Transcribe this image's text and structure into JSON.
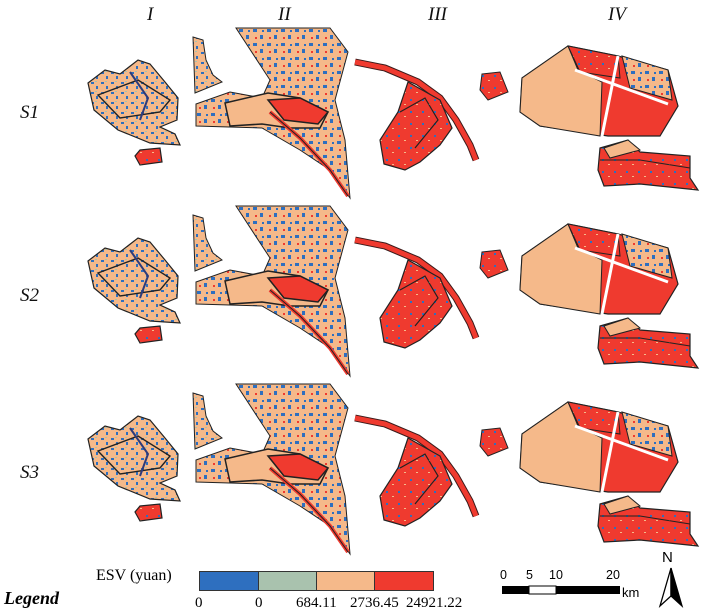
{
  "columns": [
    "I",
    "II",
    "III",
    "IV"
  ],
  "rows": [
    "S1",
    "S2",
    "S3"
  ],
  "legend": {
    "title": "Legend",
    "unit_label": "ESV (yuan)",
    "classes": [
      {
        "color": "#2e6fbf"
      },
      {
        "color": "#a9c2ae"
      },
      {
        "color": "#f5b98a"
      },
      {
        "color": "#ef3a2f"
      }
    ],
    "breaks": [
      "0",
      "0",
      "684.11",
      "2736.45",
      "24921.22"
    ]
  },
  "scale_bar": {
    "ticks": [
      "0",
      "5",
      "10",
      "20"
    ],
    "unit": "km"
  },
  "north_arrow": {
    "label": "N"
  }
}
